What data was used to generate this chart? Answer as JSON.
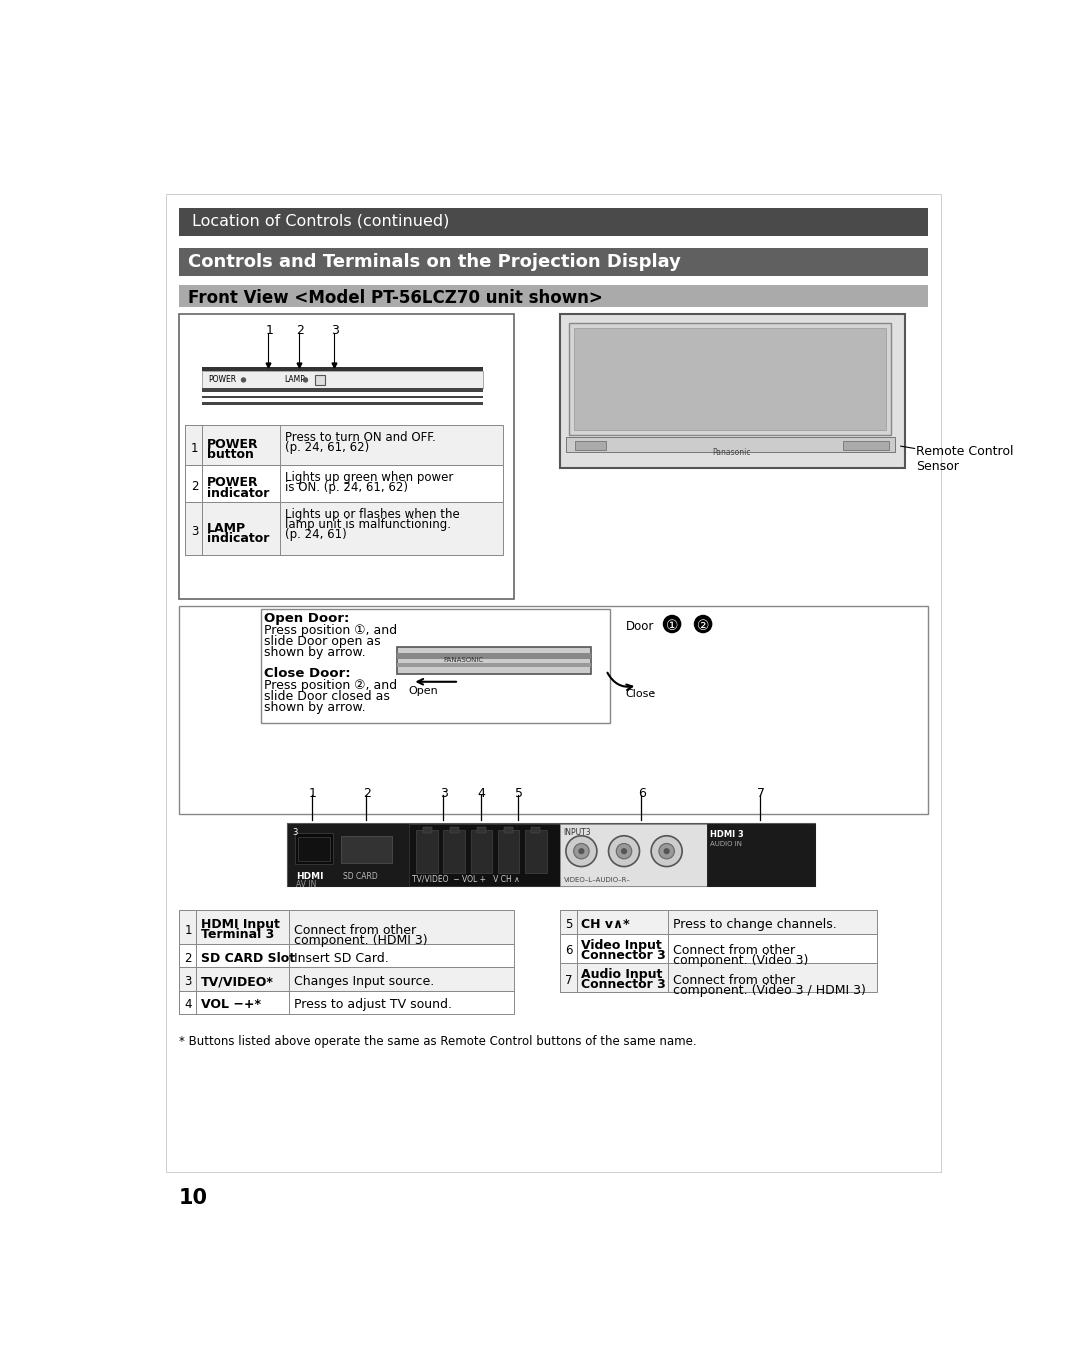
{
  "page_bg": "#ffffff",
  "top_bar_color": "#4a4a4a",
  "top_bar_text": "Location of Controls (continued)",
  "top_bar_text_color": "#ffffff",
  "section_bar_color": "#606060",
  "section_bar_text": "Controls and Terminals on the Projection Display",
  "section_bar_text_color": "#ffffff",
  "subheader_bar_color": "#aaaaaa",
  "subheader_bar_text": "Front View <Model PT-56LCZ70 unit shown>",
  "subheader_bar_text_color": "#000000",
  "page_number": "10",
  "table1_rows": [
    {
      "num": "1",
      "label1": "POWER",
      "label2": "button",
      "desc": "Press to turn ON and OFF.\n(p. 24, 61, 62)"
    },
    {
      "num": "2",
      "label1": "POWER",
      "label2": "indicator",
      "desc": "Lights up green when power\nis ON. (p. 24, 61, 62)"
    },
    {
      "num": "3",
      "label1": "LAMP",
      "label2": "indicator",
      "desc": "Lights up or flashes when the\nlamp unit is malfunctioning.\n(p. 24, 61)"
    }
  ],
  "table2_rows": [
    {
      "num": "1",
      "label1": "HDMI Input",
      "label2": "Terminal 3",
      "desc": "Connect from other\ncomponent. (HDMI 3)"
    },
    {
      "num": "2",
      "label1": "SD CARD Slot",
      "label2": "",
      "desc": "Insert SD Card."
    },
    {
      "num": "3",
      "label1": "TV/VIDEO*",
      "label2": "",
      "desc": "Changes Input source."
    },
    {
      "num": "4",
      "label1": "VOL −+*",
      "label2": "",
      "desc": "Press to adjust TV sound."
    }
  ],
  "table3_rows": [
    {
      "num": "5",
      "label1": "CH v∧*",
      "label2": "",
      "desc": "Press to change channels."
    },
    {
      "num": "6",
      "label1": "Video Input",
      "label2": "Connector 3",
      "desc": "Connect from other\ncomponent. (Video 3)"
    },
    {
      "num": "7",
      "label1": "Audio Input",
      "label2": "Connector 3",
      "desc": "Connect from other\ncomponent. (Video 3 / HDMI 3)"
    }
  ],
  "footnote": "* Buttons listed above operate the same as Remote Control buttons of the same name.",
  "remote_label": "Remote Control\nSensor"
}
